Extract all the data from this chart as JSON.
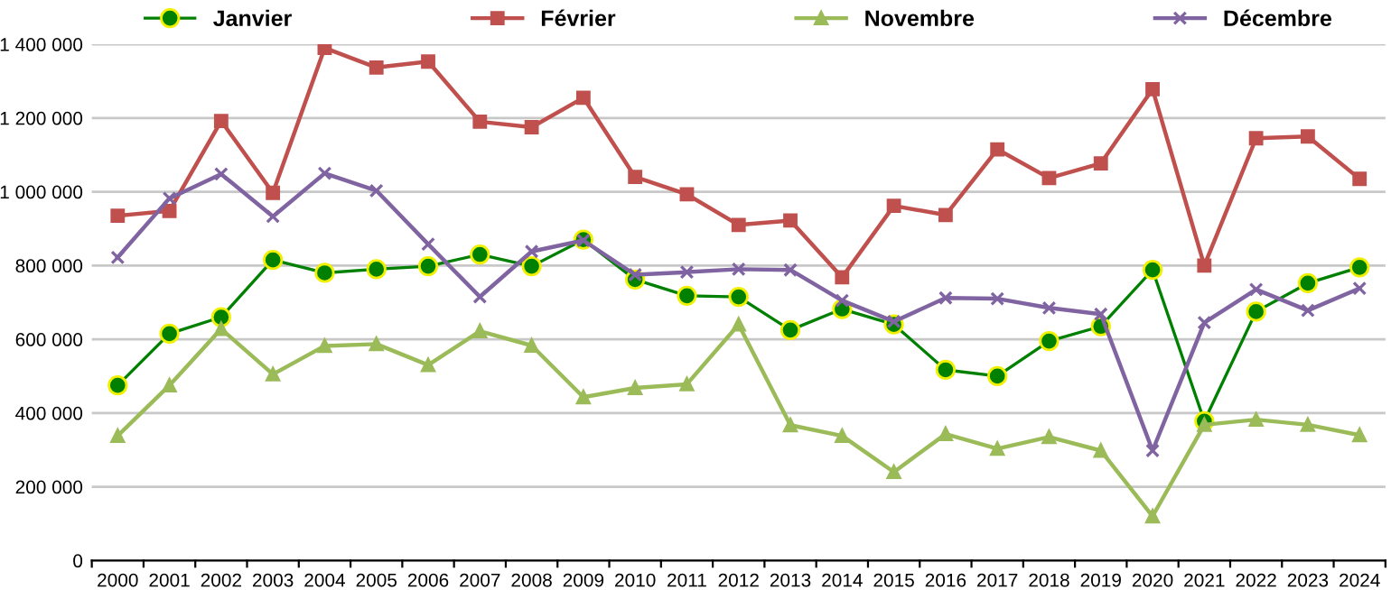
{
  "chart_data": {
    "type": "line",
    "categories": [
      "2000",
      "2001",
      "2002",
      "2003",
      "2004",
      "2005",
      "2006",
      "2007",
      "2008",
      "2009",
      "2010",
      "2011",
      "2012",
      "2013",
      "2014",
      "2015",
      "2016",
      "2017",
      "2018",
      "2019",
      "2020",
      "2021",
      "2022",
      "2023",
      "2024"
    ],
    "series": [
      {
        "name": "Janvier",
        "color": "#008000",
        "marker": "circle",
        "values": [
          475000,
          615000,
          660000,
          815000,
          780000,
          790000,
          798000,
          830000,
          798000,
          870000,
          762000,
          718000,
          715000,
          625000,
          682000,
          640000,
          517000,
          500000,
          595000,
          635000,
          788000,
          378000,
          675000,
          752000,
          795000
        ]
      },
      {
        "name": "Février",
        "color": "#c0504d",
        "marker": "square",
        "values": [
          935000,
          948000,
          1192000,
          997000,
          1390000,
          1337000,
          1353000,
          1190000,
          1175000,
          1255000,
          1040000,
          993000,
          910000,
          922000,
          768000,
          962000,
          937000,
          1115000,
          1037000,
          1077000,
          1278000,
          800000,
          1145000,
          1150000,
          1035000
        ]
      },
      {
        "name": "Novembre",
        "color": "#9bbb59",
        "marker": "triangle",
        "values": [
          338000,
          475000,
          628000,
          505000,
          582000,
          587000,
          530000,
          622000,
          583000,
          443000,
          468000,
          478000,
          640000,
          367000,
          338000,
          240000,
          343000,
          303000,
          335000,
          298000,
          120000,
          368000,
          382000,
          368000,
          340000
        ]
      },
      {
        "name": "Décembre",
        "color": "#8064a2",
        "marker": "cross",
        "values": [
          822000,
          982000,
          1048000,
          933000,
          1050000,
          1003000,
          858000,
          715000,
          838000,
          868000,
          775000,
          782000,
          790000,
          788000,
          705000,
          648000,
          712000,
          710000,
          685000,
          668000,
          298000,
          645000,
          735000,
          678000,
          738000
        ]
      }
    ],
    "ylim": [
      0,
      1400000
    ],
    "yticks": [
      0,
      {
        "value": 200000,
        "label": "200 000"
      },
      {
        "value": 400000,
        "label": "400 000"
      },
      {
        "value": 600000,
        "label": "600 000"
      },
      {
        "value": 800000,
        "label": "800 000"
      },
      {
        "value": 1000000,
        "label": "1 000 000"
      },
      {
        "value": 1200000,
        "label": "1 200 000"
      },
      {
        "value": 1400000,
        "label": "1 400 000"
      }
    ],
    "grid": "y",
    "legend": "top"
  }
}
